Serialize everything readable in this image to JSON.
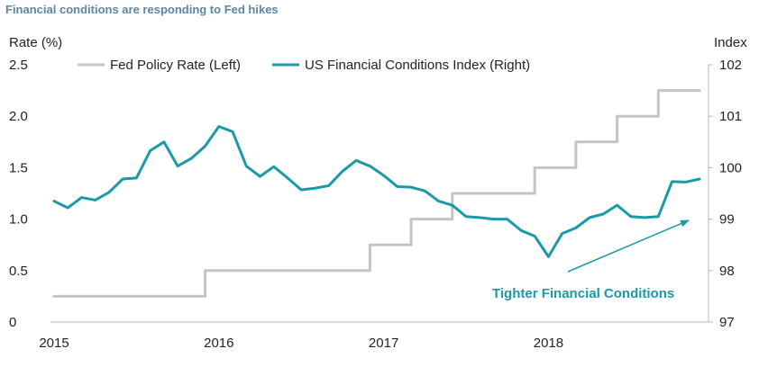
{
  "chart_data": {
    "type": "line",
    "title": "Financial conditions are responding to Fed hikes",
    "left_axis": {
      "label": "Rate (%)",
      "ylim": [
        0,
        2.5
      ],
      "ticks": [
        "0",
        "0.5",
        "1.0",
        "1.5",
        "2.0",
        "2.5"
      ]
    },
    "right_axis": {
      "label": "Index",
      "ylim": [
        97,
        102
      ],
      "ticks": [
        "97",
        "98",
        "99",
        "100",
        "101",
        "102"
      ]
    },
    "x_ticks": [
      "2015",
      "2016",
      "2017",
      "2018"
    ],
    "grid": false,
    "legend_position": "top",
    "series": [
      {
        "name": "Fed Policy Rate (Left)",
        "axis": "left",
        "color": "#c4c4c4",
        "points": [
          [
            "2015-01",
            0.25
          ],
          [
            "2015-12",
            0.25
          ],
          [
            "2015-12",
            0.5
          ],
          [
            "2016-12",
            0.5
          ],
          [
            "2016-12",
            0.75
          ],
          [
            "2017-03",
            0.75
          ],
          [
            "2017-03",
            1.0
          ],
          [
            "2017-06",
            1.0
          ],
          [
            "2017-06",
            1.25
          ],
          [
            "2017-12",
            1.25
          ],
          [
            "2017-12",
            1.5
          ],
          [
            "2018-03",
            1.5
          ],
          [
            "2018-03",
            1.75
          ],
          [
            "2018-06",
            1.75
          ],
          [
            "2018-06",
            2.0
          ],
          [
            "2018-09",
            2.0
          ],
          [
            "2018-09",
            2.25
          ],
          [
            "2018-12",
            2.25
          ]
        ]
      },
      {
        "name": "US Financial Conditions Index (Right)",
        "axis": "right",
        "color": "#1a9aa8",
        "points": [
          [
            "2015-01",
            99.35
          ],
          [
            "2015-02",
            99.22
          ],
          [
            "2015-03",
            99.42
          ],
          [
            "2015-04",
            99.37
          ],
          [
            "2015-05",
            99.52
          ],
          [
            "2015-06",
            99.78
          ],
          [
            "2015-07",
            99.8
          ],
          [
            "2015-08",
            100.33
          ],
          [
            "2015-09",
            100.5
          ],
          [
            "2015-10",
            100.03
          ],
          [
            "2015-11",
            100.18
          ],
          [
            "2015-12",
            100.42
          ],
          [
            "2016-01",
            100.8
          ],
          [
            "2016-02",
            100.7
          ],
          [
            "2016-03",
            100.03
          ],
          [
            "2016-04",
            99.83
          ],
          [
            "2016-05",
            100.02
          ],
          [
            "2016-06",
            99.8
          ],
          [
            "2016-07",
            99.57
          ],
          [
            "2016-08",
            99.6
          ],
          [
            "2016-09",
            99.65
          ],
          [
            "2016-10",
            99.93
          ],
          [
            "2016-11",
            100.14
          ],
          [
            "2016-12",
            100.03
          ],
          [
            "2017-01",
            99.85
          ],
          [
            "2017-02",
            99.63
          ],
          [
            "2017-03",
            99.62
          ],
          [
            "2017-04",
            99.55
          ],
          [
            "2017-05",
            99.35
          ],
          [
            "2017-06",
            99.27
          ],
          [
            "2017-07",
            99.05
          ],
          [
            "2017-08",
            99.03
          ],
          [
            "2017-09",
            99.0
          ],
          [
            "2017-10",
            99.0
          ],
          [
            "2017-11",
            98.78
          ],
          [
            "2017-12",
            98.67
          ],
          [
            "2018-01",
            98.27
          ],
          [
            "2018-02",
            98.72
          ],
          [
            "2018-03",
            98.83
          ],
          [
            "2018-04",
            99.03
          ],
          [
            "2018-05",
            99.1
          ],
          [
            "2018-06",
            99.27
          ],
          [
            "2018-07",
            99.05
          ],
          [
            "2018-08",
            99.03
          ],
          [
            "2018-09",
            99.05
          ],
          [
            "2018-10",
            99.73
          ],
          [
            "2018-11",
            99.72
          ],
          [
            "2018-12",
            99.78
          ]
        ]
      }
    ],
    "annotation": {
      "text": "Tighter Financial Conditions"
    }
  }
}
